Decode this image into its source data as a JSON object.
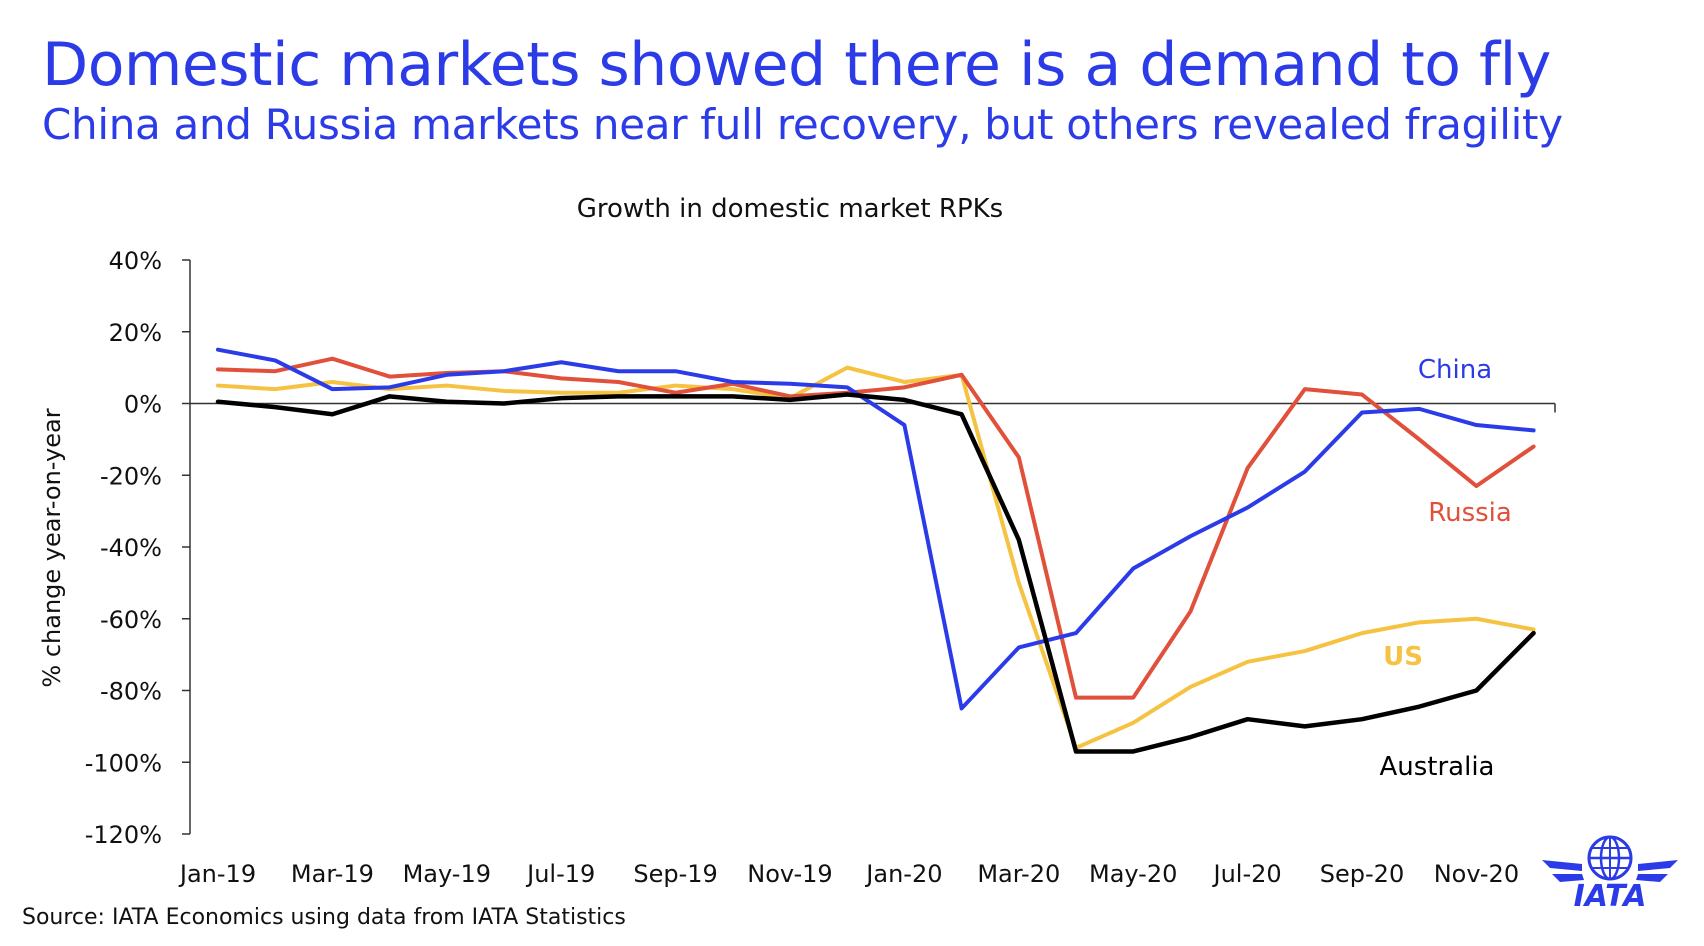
{
  "slide": {
    "headline": "Domestic markets showed there is a demand to fly",
    "subheadline": "China and Russia markets near full recovery, but others revealed fragility",
    "source": "Source: IATA Economics using data from IATA Statistics",
    "accent_color": "#2b3be8"
  },
  "logo": {
    "text": "IATA",
    "icon": "globe-icon",
    "color": "#2b3be8"
  },
  "chart_data": {
    "type": "line",
    "title": "Growth in domestic market RPKs",
    "xlabel": "",
    "ylabel": "% change year-on-year",
    "ylim": [
      -120,
      40
    ],
    "y_ticks": [
      40,
      20,
      0,
      -20,
      -40,
      -60,
      -80,
      -100,
      -120
    ],
    "y_tick_labels": [
      "40%",
      "20%",
      "0%",
      "-20%",
      "-40%",
      "-60%",
      "-80%",
      "-100%",
      "-120%"
    ],
    "x": [
      "Jan-19",
      "Feb-19",
      "Mar-19",
      "Apr-19",
      "May-19",
      "Jun-19",
      "Jul-19",
      "Aug-19",
      "Sep-19",
      "Oct-19",
      "Nov-19",
      "Dec-19",
      "Jan-20",
      "Feb-20",
      "Mar-20",
      "Apr-20",
      "May-20",
      "Jun-20",
      "Jul-20",
      "Aug-20",
      "Sep-20",
      "Oct-20",
      "Nov-20",
      "Dec-20"
    ],
    "x_tick_labels": [
      "Jan-19",
      "Mar-19",
      "May-19",
      "Jul-19",
      "Sep-19",
      "Nov-19",
      "Jan-20",
      "Mar-20",
      "May-20",
      "Jul-20",
      "Sep-20",
      "Nov-20"
    ],
    "grid": false,
    "legend": "inline labels",
    "series": [
      {
        "name": "China",
        "color": "#2b3be8",
        "values": [
          15,
          12,
          4,
          4.5,
          8,
          9,
          11.5,
          9,
          9,
          6,
          5.5,
          4.5,
          -6,
          -85,
          -68,
          -64,
          -46,
          -37,
          -29,
          -19,
          -2.5,
          -1.5,
          -6,
          -7.5
        ]
      },
      {
        "name": "Russia",
        "color": "#e0503a",
        "values": [
          9.5,
          9,
          12.5,
          7.5,
          8.5,
          9,
          7,
          6,
          3,
          5.5,
          2,
          3,
          4.5,
          8,
          -15,
          -82,
          -82,
          -58,
          -18,
          4,
          2.5,
          -10,
          -23,
          -12
        ]
      },
      {
        "name": "US",
        "color": "#f5c242",
        "values": [
          5,
          4,
          6,
          4,
          5,
          3.5,
          3,
          3,
          5,
          4,
          1.5,
          10,
          6,
          8,
          -50,
          -96,
          -89,
          -79,
          -72,
          -69,
          -64,
          -61,
          -60,
          -63
        ]
      },
      {
        "name": "Australia",
        "color": "#000000",
        "values": [
          0.5,
          -1,
          -3,
          2,
          0.5,
          0,
          1.5,
          2,
          2,
          2,
          1,
          2.5,
          1,
          -3,
          -38,
          -97,
          -97,
          -93,
          -88,
          -90,
          -88,
          -84.5,
          -80,
          -64
        ]
      }
    ]
  }
}
